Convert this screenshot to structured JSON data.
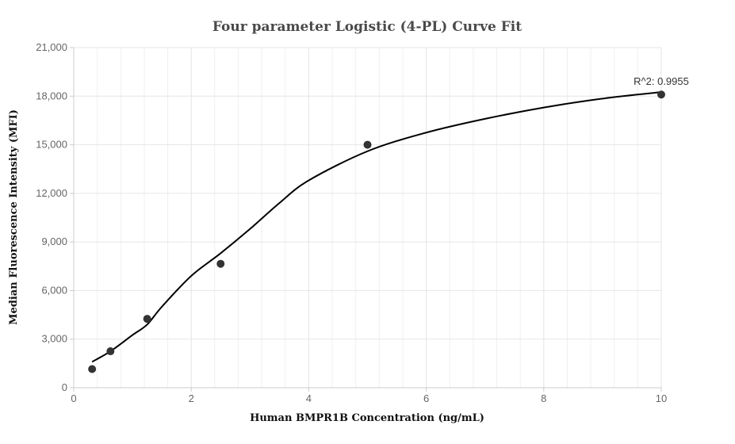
{
  "chart_data": {
    "type": "scatter",
    "title": "Four parameter Logistic (4-PL) Curve Fit",
    "xlabel": "Human BMPR1B Concentration (ng/mL)",
    "ylabel": "Median Fluorescence Intensity (MFI)",
    "xlim": [
      0,
      10
    ],
    "ylim": [
      0,
      21000
    ],
    "x_ticks": [
      0,
      2,
      4,
      6,
      8,
      10
    ],
    "x_tick_labels": [
      "0",
      "2",
      "4",
      "6",
      "8",
      "10"
    ],
    "y_ticks": [
      0,
      3000,
      6000,
      9000,
      12000,
      15000,
      18000,
      21000
    ],
    "y_tick_labels": [
      "0",
      "3,000",
      "6,000",
      "9,000",
      "12,000",
      "15,000",
      "18,000",
      "21,000"
    ],
    "grid": true,
    "legend": "none",
    "points": [
      {
        "x": 0.3125,
        "y": 1150
      },
      {
        "x": 0.625,
        "y": 2250
      },
      {
        "x": 1.25,
        "y": 4250
      },
      {
        "x": 2.5,
        "y": 7650
      },
      {
        "x": 5,
        "y": 15000
      },
      {
        "x": 10,
        "y": 18100
      }
    ],
    "fit_curve": {
      "x": [
        0.3125,
        0.625,
        1.0,
        1.25,
        1.5,
        2.0,
        2.5,
        3.0,
        3.5,
        4.0,
        5.0,
        6.0,
        7.0,
        8.0,
        9.0,
        10.0
      ],
      "y": [
        1600,
        2250,
        3250,
        3900,
        5000,
        6900,
        8300,
        9800,
        11400,
        12800,
        14600,
        15750,
        16600,
        17300,
        17850,
        18250
      ]
    },
    "annotation": "R^2: 0.9955",
    "colors": {
      "points": "#333333",
      "curve": "#000000",
      "grid": "#e6e6e6",
      "axis": "#cccccc"
    }
  }
}
